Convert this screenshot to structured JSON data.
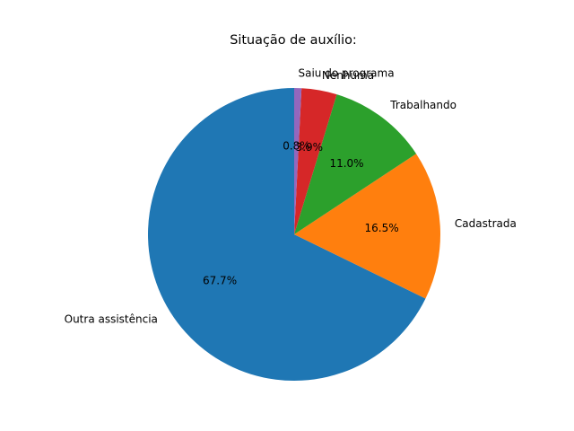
{
  "chart_data": {
    "type": "pie",
    "title": "Situação de auxílio:",
    "slices": [
      {
        "label": "Outra assistência",
        "percent": 67.7,
        "pct_label": "67.7%",
        "color": "#1f77b4"
      },
      {
        "label": "Cadastrada",
        "percent": 16.5,
        "pct_label": "16.5%",
        "color": "#ff7f0e"
      },
      {
        "label": "Trabalhando",
        "percent": 11.0,
        "pct_label": "11.0%",
        "color": "#2ca02c"
      },
      {
        "label": "Nenhuma",
        "percent": 3.9,
        "pct_label": "3.9%",
        "color": "#d62728"
      },
      {
        "label": "Saiu do programa",
        "percent": 0.8,
        "pct_label": "0.8%",
        "color": "#9467bd"
      }
    ],
    "start_angle_deg": 90,
    "direction": "counterclockwise"
  }
}
